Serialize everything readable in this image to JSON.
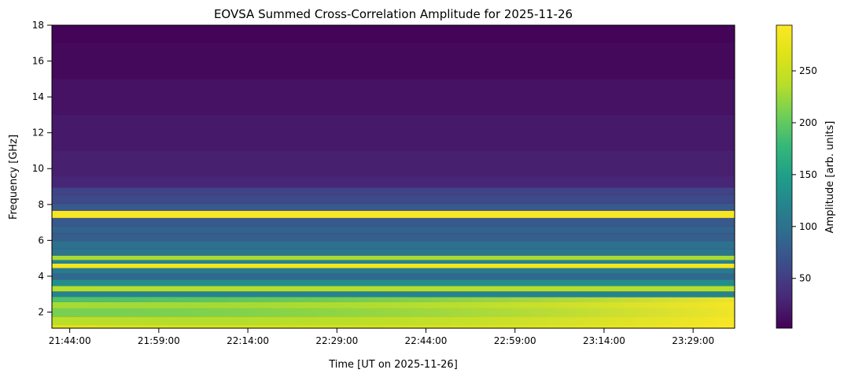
{
  "chart_data": {
    "type": "heatmap",
    "title": "EOVSA Summed Cross-Correlation Amplitude for 2025-11-26",
    "xlabel": "Time [UT on 2025-11-26]",
    "ylabel": "Frequency [GHz]",
    "colorbar_label": "Amplitude [arb. units]",
    "colormap": "viridis",
    "x_ticks": [
      "21:44:00",
      "21:59:00",
      "22:14:00",
      "22:29:00",
      "22:44:00",
      "22:59:00",
      "23:14:00",
      "23:29:00"
    ],
    "x_range": [
      "21:41:00",
      "23:36:00"
    ],
    "y_ticks": [
      2,
      4,
      6,
      8,
      10,
      12,
      14,
      16,
      18
    ],
    "ylim": [
      1.1,
      18
    ],
    "colorbar_ticks": [
      50,
      100,
      150,
      200,
      250
    ],
    "clim": [
      2,
      294
    ],
    "frequency_profile": [
      {
        "f": 1.1,
        "amp": 268
      },
      {
        "f": 1.5,
        "amp": 240
      },
      {
        "f": 2.0,
        "amp": 210
      },
      {
        "f": 2.4,
        "amp": 230
      },
      {
        "f": 2.7,
        "amp": 190
      },
      {
        "f": 3.0,
        "amp": 120
      },
      {
        "f": 3.3,
        "amp": 235
      },
      {
        "f": 3.6,
        "amp": 130
      },
      {
        "f": 4.0,
        "amp": 90
      },
      {
        "f": 4.3,
        "amp": 110
      },
      {
        "f": 4.6,
        "amp": 285
      },
      {
        "f": 4.8,
        "amp": 120
      },
      {
        "f": 5.0,
        "amp": 230
      },
      {
        "f": 5.3,
        "amp": 105
      },
      {
        "f": 5.7,
        "amp": 100
      },
      {
        "f": 6.2,
        "amp": 80
      },
      {
        "f": 6.6,
        "amp": 85
      },
      {
        "f": 7.0,
        "amp": 75
      },
      {
        "f": 7.5,
        "amp": 290
      },
      {
        "f": 7.8,
        "amp": 75
      },
      {
        "f": 8.3,
        "amp": 60
      },
      {
        "f": 8.8,
        "amp": 55
      },
      {
        "f": 9.1,
        "amp": 30
      },
      {
        "f": 10.0,
        "amp": 25
      },
      {
        "f": 12.0,
        "amp": 20
      },
      {
        "f": 14.0,
        "amp": 15
      },
      {
        "f": 16.0,
        "amp": 8
      },
      {
        "f": 18.0,
        "amp": 5
      }
    ]
  }
}
